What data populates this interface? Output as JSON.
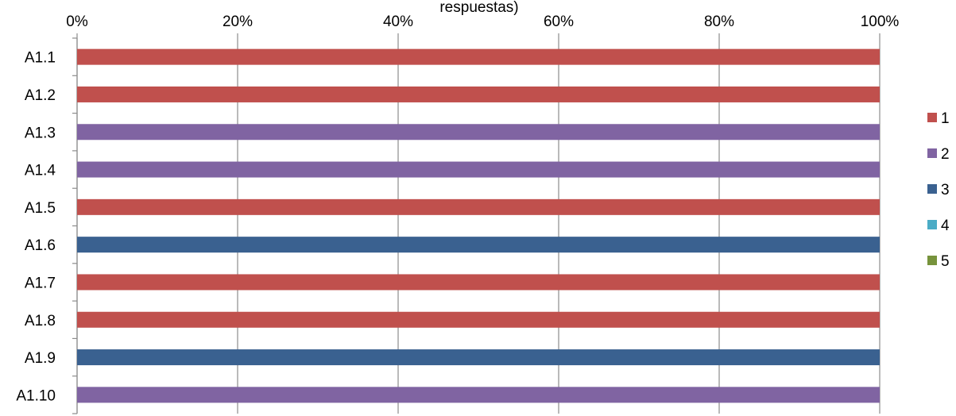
{
  "chart_data": {
    "type": "bar",
    "orientation": "horizontal",
    "stacked": "percent",
    "title_visible_fragment": "respuestas)",
    "categories": [
      "A1.1",
      "A1.2",
      "A1.3",
      "A1.4",
      "A1.5",
      "A1.6",
      "A1.7",
      "A1.8",
      "A1.9",
      "A1.10"
    ],
    "series": [
      {
        "name": "1",
        "color": "#C0504D",
        "values": [
          100,
          100,
          0,
          0,
          100,
          0,
          100,
          100,
          0,
          0
        ]
      },
      {
        "name": "2",
        "color": "#8064A2",
        "values": [
          0,
          0,
          100,
          100,
          0,
          0,
          0,
          0,
          0,
          100
        ]
      },
      {
        "name": "3",
        "color": "#3A6190",
        "values": [
          0,
          0,
          0,
          0,
          0,
          100,
          0,
          0,
          100,
          0
        ]
      },
      {
        "name": "4",
        "color": "#4BACC6",
        "values": [
          0,
          0,
          0,
          0,
          0,
          0,
          0,
          0,
          0,
          0
        ]
      },
      {
        "name": "5",
        "color": "#77933C",
        "values": [
          0,
          0,
          0,
          0,
          0,
          0,
          0,
          0,
          0,
          0
        ]
      }
    ],
    "x_ticks": [
      "0%",
      "20%",
      "40%",
      "60%",
      "80%",
      "100%"
    ],
    "xlim": [
      0,
      100
    ],
    "x_axis_position": "top",
    "grid": true,
    "legend_position": "right"
  }
}
